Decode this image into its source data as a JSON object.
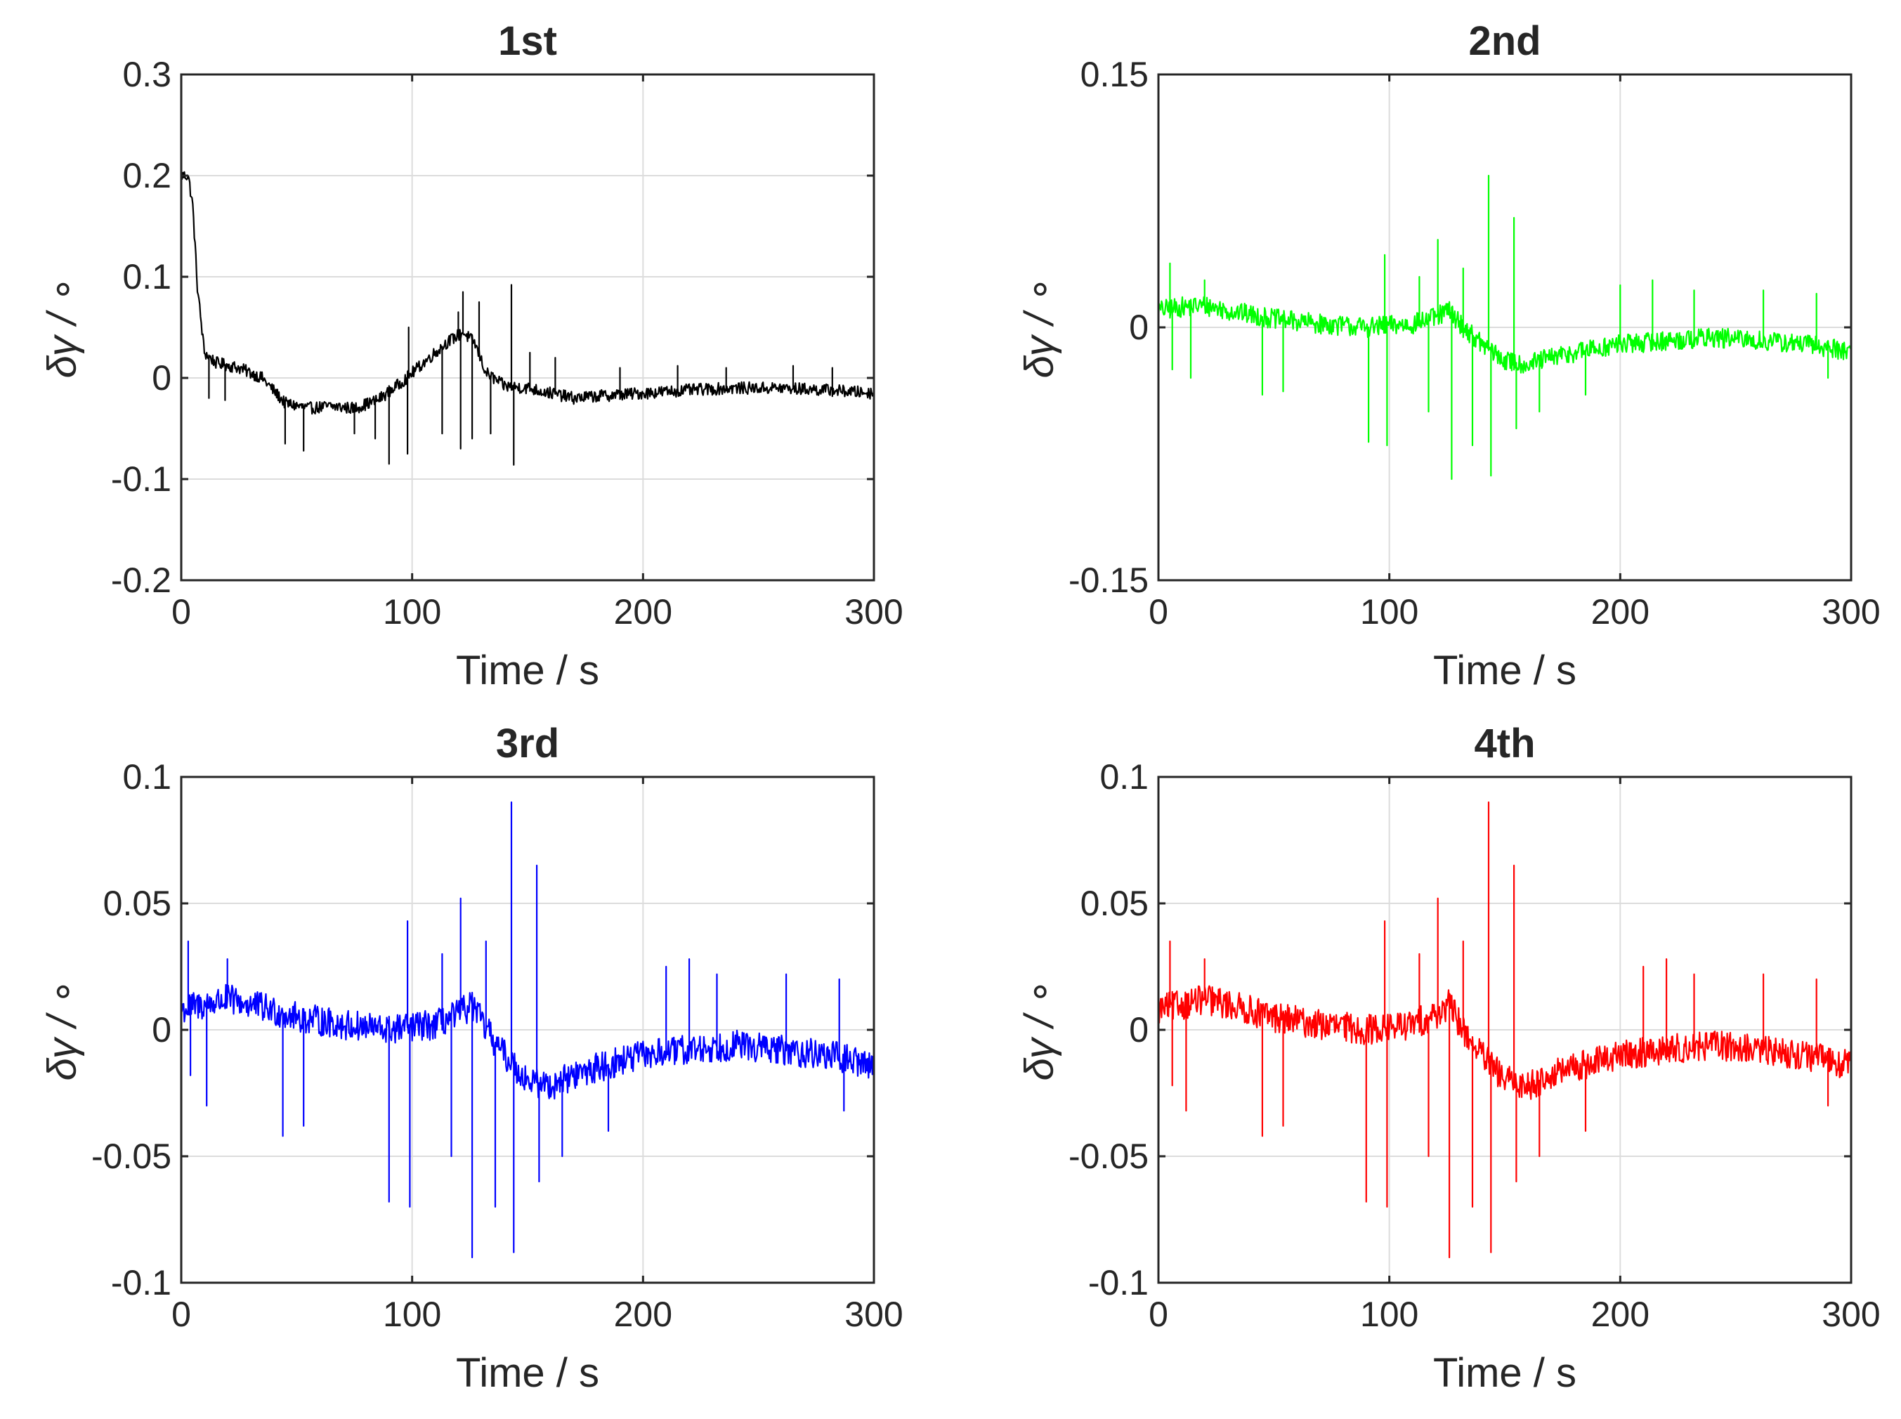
{
  "chart_data": [
    {
      "type": "line",
      "title": "1st",
      "xlabel": "Time / s",
      "ylabel": "δγ / ∘",
      "color": "#000000",
      "xlim": [
        0,
        300
      ],
      "ylim": [
        -0.2,
        0.3
      ],
      "xticks": [
        0,
        100,
        200,
        300
      ],
      "xtick_labels": [
        "0",
        "100",
        "200",
        "300"
      ],
      "yticks": [
        -0.2,
        -0.1,
        0,
        0.1,
        0.2,
        0.3
      ],
      "ytick_labels": [
        "-0.2",
        "-0.1",
        "0",
        "0.1",
        "0.2",
        "0.3"
      ],
      "grid": true,
      "series": [
        {
          "name": "1st",
          "trend": {
            "x": [
              0,
              3,
              5,
              7,
              10,
              15,
              25,
              35,
              45,
              55,
              65,
              75,
              85,
              95,
              105,
              115,
              122,
              127,
              132,
              140,
              150,
              160,
              170,
              180,
              200,
              220,
              240,
              260,
              280,
              300
            ],
            "y": [
              0.2,
              0.2,
              0.17,
              0.09,
              0.025,
              0.015,
              0.01,
              0.0,
              -0.025,
              -0.03,
              -0.028,
              -0.03,
              -0.022,
              -0.005,
              0.015,
              0.035,
              0.045,
              0.035,
              0.005,
              -0.008,
              -0.01,
              -0.015,
              -0.02,
              -0.018,
              -0.015,
              -0.012,
              -0.01,
              -0.01,
              -0.012,
              -0.015
            ]
          },
          "noise": 0.006,
          "spikes": [
            {
              "x": 12,
              "y": -0.02
            },
            {
              "x": 19,
              "y": -0.022
            },
            {
              "x": 45,
              "y": -0.065
            },
            {
              "x": 53,
              "y": -0.072
            },
            {
              "x": 75,
              "y": -0.055
            },
            {
              "x": 84,
              "y": -0.06
            },
            {
              "x": 90,
              "y": -0.085
            },
            {
              "x": 98,
              "y": -0.075
            },
            {
              "x": 98.5,
              "y": 0.05
            },
            {
              "x": 113,
              "y": -0.055
            },
            {
              "x": 120,
              "y": 0.065
            },
            {
              "x": 121,
              "y": -0.07
            },
            {
              "x": 122,
              "y": 0.085
            },
            {
              "x": 126,
              "y": -0.06
            },
            {
              "x": 129,
              "y": 0.075
            },
            {
              "x": 134,
              "y": -0.055
            },
            {
              "x": 143,
              "y": 0.092
            },
            {
              "x": 144,
              "y": -0.086
            },
            {
              "x": 151,
              "y": 0.025
            },
            {
              "x": 162,
              "y": 0.02
            },
            {
              "x": 190,
              "y": 0.01
            },
            {
              "x": 215,
              "y": 0.012
            },
            {
              "x": 236,
              "y": 0.01
            },
            {
              "x": 265,
              "y": 0.012
            },
            {
              "x": 282,
              "y": 0.01
            }
          ]
        }
      ]
    },
    {
      "type": "line",
      "title": "2nd",
      "xlabel": "Time / s",
      "ylabel": "δγ / ∘",
      "color": "#00ff00",
      "xlim": [
        0,
        300
      ],
      "ylim": [
        -0.15,
        0.15
      ],
      "xticks": [
        0,
        100,
        200,
        300
      ],
      "xtick_labels": [
        "0",
        "100",
        "200",
        "300"
      ],
      "yticks": [
        -0.15,
        0,
        0.15
      ],
      "ytick_labels": [
        "-0.15",
        "0",
        "0.15"
      ],
      "grid": true,
      "series": [
        {
          "name": "2nd",
          "trend": {
            "x": [
              0,
              10,
              20,
              30,
              50,
              70,
              90,
              110,
              120,
              126,
              132,
              140,
              150,
              160,
              170,
              180,
              200,
              220,
              240,
              260,
              280,
              300
            ],
            "y": [
              0.01,
              0.012,
              0.013,
              0.01,
              0.005,
              0.002,
              0.0,
              0.002,
              0.006,
              0.01,
              0.0,
              -0.01,
              -0.02,
              -0.022,
              -0.018,
              -0.015,
              -0.01,
              -0.008,
              -0.006,
              -0.008,
              -0.01,
              -0.014
            ]
          },
          "noise": 0.006,
          "spikes": [
            {
              "x": 5,
              "y": 0.038
            },
            {
              "x": 6,
              "y": -0.025
            },
            {
              "x": 14,
              "y": -0.03
            },
            {
              "x": 20,
              "y": 0.028
            },
            {
              "x": 45,
              "y": -0.04
            },
            {
              "x": 54,
              "y": -0.038
            },
            {
              "x": 91,
              "y": -0.068
            },
            {
              "x": 98,
              "y": 0.043
            },
            {
              "x": 99,
              "y": -0.07
            },
            {
              "x": 113,
              "y": 0.03
            },
            {
              "x": 117,
              "y": -0.05
            },
            {
              "x": 121,
              "y": 0.052
            },
            {
              "x": 127,
              "y": -0.09
            },
            {
              "x": 132,
              "y": 0.035
            },
            {
              "x": 136,
              "y": -0.07
            },
            {
              "x": 143,
              "y": 0.09
            },
            {
              "x": 144,
              "y": -0.088
            },
            {
              "x": 154,
              "y": 0.065
            },
            {
              "x": 155,
              "y": -0.06
            },
            {
              "x": 165,
              "y": -0.05
            },
            {
              "x": 185,
              "y": -0.04
            },
            {
              "x": 200,
              "y": 0.025
            },
            {
              "x": 214,
              "y": 0.028
            },
            {
              "x": 232,
              "y": 0.022
            },
            {
              "x": 262,
              "y": 0.022
            },
            {
              "x": 285,
              "y": 0.02
            },
            {
              "x": 290,
              "y": -0.03
            }
          ]
        }
      ]
    },
    {
      "type": "line",
      "title": "3rd",
      "xlabel": "Time / s",
      "ylabel": "δγ / ∘",
      "color": "#0000ff",
      "xlim": [
        0,
        300
      ],
      "ylim": [
        -0.1,
        0.1
      ],
      "xticks": [
        0,
        100,
        200,
        300
      ],
      "xtick_labels": [
        "0",
        "100",
        "200",
        "300"
      ],
      "yticks": [
        -0.1,
        -0.05,
        0,
        0.05,
        0.1
      ],
      "ytick_labels": [
        "-0.1",
        "-0.05",
        "0",
        "0.05",
        "0.1"
      ],
      "grid": true,
      "series": [
        {
          "name": "3rd",
          "trend": {
            "x": [
              0,
              10,
              20,
              30,
              50,
              70,
              90,
              110,
              120,
              126,
              132,
              140,
              150,
              160,
              170,
              180,
              200,
              220,
              240,
              260,
              280,
              300
            ],
            "y": [
              0.008,
              0.01,
              0.012,
              0.01,
              0.005,
              0.002,
              0.0,
              0.002,
              0.006,
              0.01,
              0.0,
              -0.01,
              -0.02,
              -0.022,
              -0.018,
              -0.015,
              -0.01,
              -0.008,
              -0.006,
              -0.008,
              -0.01,
              -0.014
            ]
          },
          "noise": 0.006,
          "spikes": [
            {
              "x": 3,
              "y": 0.035
            },
            {
              "x": 4,
              "y": -0.018
            },
            {
              "x": 11,
              "y": -0.03
            },
            {
              "x": 20,
              "y": 0.028
            },
            {
              "x": 44,
              "y": -0.042
            },
            {
              "x": 53,
              "y": -0.038
            },
            {
              "x": 90,
              "y": -0.068
            },
            {
              "x": 98,
              "y": 0.043
            },
            {
              "x": 99,
              "y": -0.07
            },
            {
              "x": 113,
              "y": 0.03
            },
            {
              "x": 117,
              "y": -0.05
            },
            {
              "x": 121,
              "y": 0.052
            },
            {
              "x": 126,
              "y": -0.09
            },
            {
              "x": 132,
              "y": 0.035
            },
            {
              "x": 136,
              "y": -0.07
            },
            {
              "x": 143,
              "y": 0.09
            },
            {
              "x": 144,
              "y": -0.088
            },
            {
              "x": 154,
              "y": 0.065
            },
            {
              "x": 155,
              "y": -0.06
            },
            {
              "x": 165,
              "y": -0.05
            },
            {
              "x": 185,
              "y": -0.04
            },
            {
              "x": 210,
              "y": 0.025
            },
            {
              "x": 220,
              "y": 0.028
            },
            {
              "x": 232,
              "y": 0.022
            },
            {
              "x": 262,
              "y": 0.022
            },
            {
              "x": 285,
              "y": 0.02
            },
            {
              "x": 287,
              "y": -0.032
            }
          ]
        }
      ]
    },
    {
      "type": "line",
      "title": "4th",
      "xlabel": "Time / s",
      "ylabel": "δγ / ∘",
      "color": "#ff0000",
      "xlim": [
        0,
        300
      ],
      "ylim": [
        -0.1,
        0.1
      ],
      "xticks": [
        0,
        100,
        200,
        300
      ],
      "xtick_labels": [
        "0",
        "100",
        "200",
        "300"
      ],
      "yticks": [
        -0.1,
        -0.05,
        0,
        0.05,
        0.1
      ],
      "ytick_labels": [
        "-0.1",
        "-0.05",
        "0",
        "0.05",
        "0.1"
      ],
      "grid": true,
      "series": [
        {
          "name": "4th",
          "trend": {
            "x": [
              0,
              10,
              20,
              30,
              50,
              70,
              90,
              110,
              120,
              126,
              132,
              140,
              150,
              160,
              170,
              180,
              200,
              220,
              240,
              260,
              280,
              300
            ],
            "y": [
              0.008,
              0.01,
              0.012,
              0.01,
              0.005,
              0.002,
              0.0,
              0.002,
              0.006,
              0.01,
              0.0,
              -0.01,
              -0.02,
              -0.022,
              -0.018,
              -0.015,
              -0.01,
              -0.008,
              -0.006,
              -0.008,
              -0.01,
              -0.014
            ]
          },
          "noise": 0.006,
          "spikes": [
            {
              "x": 5,
              "y": 0.035
            },
            {
              "x": 6,
              "y": -0.022
            },
            {
              "x": 12,
              "y": -0.032
            },
            {
              "x": 20,
              "y": 0.028
            },
            {
              "x": 45,
              "y": -0.042
            },
            {
              "x": 54,
              "y": -0.038
            },
            {
              "x": 90,
              "y": -0.068
            },
            {
              "x": 98,
              "y": 0.043
            },
            {
              "x": 99,
              "y": -0.07
            },
            {
              "x": 113,
              "y": 0.03
            },
            {
              "x": 117,
              "y": -0.05
            },
            {
              "x": 121,
              "y": 0.052
            },
            {
              "x": 126,
              "y": -0.09
            },
            {
              "x": 132,
              "y": 0.035
            },
            {
              "x": 136,
              "y": -0.07
            },
            {
              "x": 143,
              "y": 0.09
            },
            {
              "x": 144,
              "y": -0.088
            },
            {
              "x": 154,
              "y": 0.065
            },
            {
              "x": 155,
              "y": -0.06
            },
            {
              "x": 165,
              "y": -0.05
            },
            {
              "x": 185,
              "y": -0.04
            },
            {
              "x": 210,
              "y": 0.025
            },
            {
              "x": 220,
              "y": 0.028
            },
            {
              "x": 232,
              "y": 0.022
            },
            {
              "x": 262,
              "y": 0.022
            },
            {
              "x": 285,
              "y": 0.02
            },
            {
              "x": 290,
              "y": -0.03
            }
          ]
        }
      ]
    }
  ]
}
